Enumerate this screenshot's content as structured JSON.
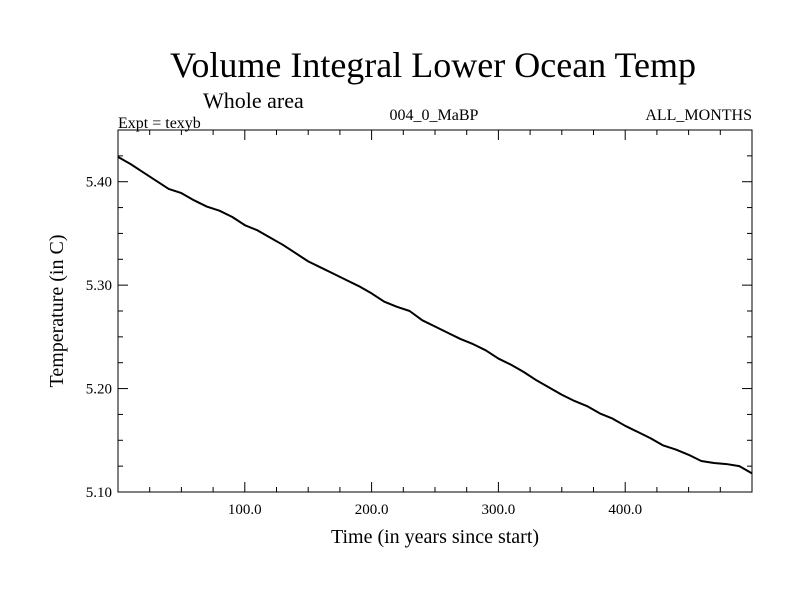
{
  "chart_data": {
    "type": "line",
    "title": "Volume Integral Lower Ocean Temp",
    "subtitle": "Whole area",
    "left_note": "Expt = texyb",
    "center_note": "004_0_MaBP",
    "right_note": "ALL_MONTHS",
    "xlabel": "Time (in years since start)",
    "ylabel": "Temperature (in C)",
    "xlim": [
      0,
      500
    ],
    "ylim": [
      5.1,
      5.45
    ],
    "x_ticks": [
      100,
      200,
      300,
      400
    ],
    "x_tick_labels": [
      "100.0",
      "200.0",
      "300.0",
      "400.0"
    ],
    "y_ticks": [
      5.1,
      5.2,
      5.3,
      5.4
    ],
    "y_tick_labels": [
      "5.10",
      "5.20",
      "5.30",
      "5.40"
    ],
    "grid": false,
    "series": [
      {
        "color": "#000000",
        "x": [
          0,
          10,
          20,
          30,
          40,
          50,
          60,
          70,
          80,
          90,
          100,
          110,
          120,
          130,
          140,
          150,
          160,
          170,
          180,
          190,
          200,
          210,
          220,
          230,
          240,
          250,
          260,
          270,
          280,
          290,
          300,
          310,
          320,
          330,
          340,
          350,
          360,
          370,
          380,
          390,
          400,
          410,
          420,
          430,
          440,
          450,
          460,
          470,
          480,
          490,
          500
        ],
        "y": [
          5.424,
          5.417,
          5.409,
          5.401,
          5.393,
          5.389,
          5.382,
          5.376,
          5.372,
          5.366,
          5.358,
          5.353,
          5.346,
          5.339,
          5.331,
          5.323,
          5.317,
          5.311,
          5.305,
          5.299,
          5.292,
          5.284,
          5.279,
          5.275,
          5.266,
          5.26,
          5.254,
          5.248,
          5.243,
          5.237,
          5.229,
          5.223,
          5.216,
          5.208,
          5.201,
          5.194,
          5.188,
          5.183,
          5.176,
          5.171,
          5.164,
          5.158,
          5.152,
          5.145,
          5.141,
          5.136,
          5.13,
          5.128,
          5.127,
          5.125,
          5.118
        ]
      }
    ]
  }
}
